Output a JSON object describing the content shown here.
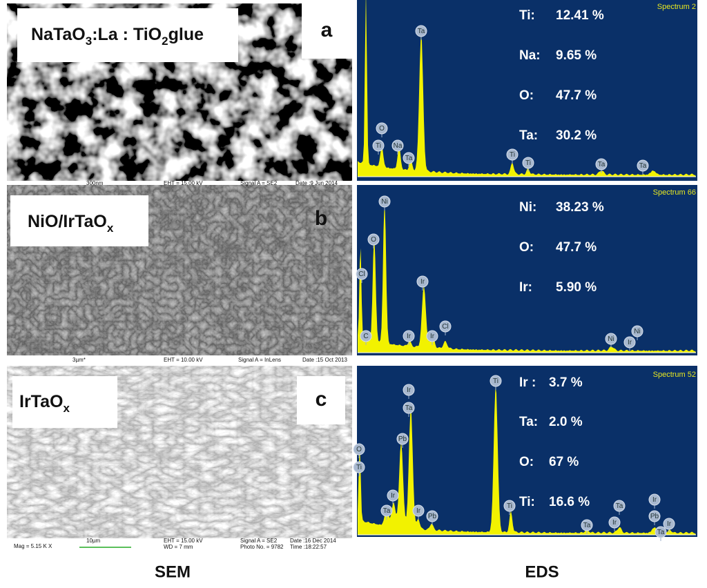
{
  "panels": [
    {
      "sem": {
        "label": [
          "NaTaO",
          "3",
          ":La : TiO",
          "2",
          "glue"
        ],
        "letter": "a",
        "footer": [
          "300nm",
          "EHT = 15.00 kV",
          "Signal A = SE2",
          "Date :9 Jun 2014"
        ]
      },
      "eds": {
        "spectrum": "Spectrum 2",
        "composition": [
          {
            "element": "Ti:",
            "value": "12.41 %"
          },
          {
            "element": "Na:",
            "value": "9.65 %"
          },
          {
            "element": "O:",
            "value": "47.7 %"
          },
          {
            "element": "Ta:",
            "value": "30.2 %"
          }
        ],
        "peaks": [
          "O",
          "Ti",
          "Na",
          "Ta",
          "Ta",
          "Ti",
          "Ti",
          "Ta",
          "Ta"
        ]
      }
    },
    {
      "sem": {
        "label": [
          "NiO/IrTaO",
          "x"
        ],
        "letter": "b",
        "footer": [
          "3µm*",
          "EHT = 10.00 kV",
          "Signal A = InLens",
          "Date :15 Oct 2013"
        ]
      },
      "eds": {
        "spectrum": "Spectrum 66",
        "composition": [
          {
            "element": "Ni:",
            "value": "38.23 %"
          },
          {
            "element": "O:",
            "value": "47.7 %"
          },
          {
            "element": "Ir:",
            "value": "5.90 %"
          }
        ],
        "peaks": [
          "Cl",
          "C",
          "O",
          "Ni",
          "Ir",
          "Ir",
          "Ir",
          "Cl",
          "Ni",
          "Ir",
          "Ni"
        ]
      }
    },
    {
      "sem": {
        "label": [
          "IrTaO",
          "x"
        ],
        "letter": "c",
        "footer": [
          "Mag = 5.15 K X",
          "10µm",
          "EHT = 15.00 kV",
          "WD = 7 mm",
          "Signal A = SE2",
          "Photo No. = 9782",
          "Date :16 Dec 2014",
          "Time :18:22:57"
        ]
      },
      "eds": {
        "spectrum": "Spectrum 52",
        "composition": [
          {
            "element": "Ir :",
            "value": "3.7 %"
          },
          {
            "element": "Ta:",
            "value": "2.0 %"
          },
          {
            "element": "O:",
            "value": "67 %"
          },
          {
            "element": "Ti:",
            "value": "16.6 %"
          }
        ],
        "peaks": [
          "O",
          "Ti",
          "Ir",
          "Ta",
          "Pb",
          "Ir",
          "Ta",
          "Ir",
          "Pb",
          "Ti",
          "Ti",
          "Ta",
          "Ir",
          "Ta",
          "Ir",
          "Pb",
          "Ta",
          "Ir"
        ]
      }
    }
  ],
  "captions": {
    "sem": "SEM",
    "eds": "EDS"
  }
}
